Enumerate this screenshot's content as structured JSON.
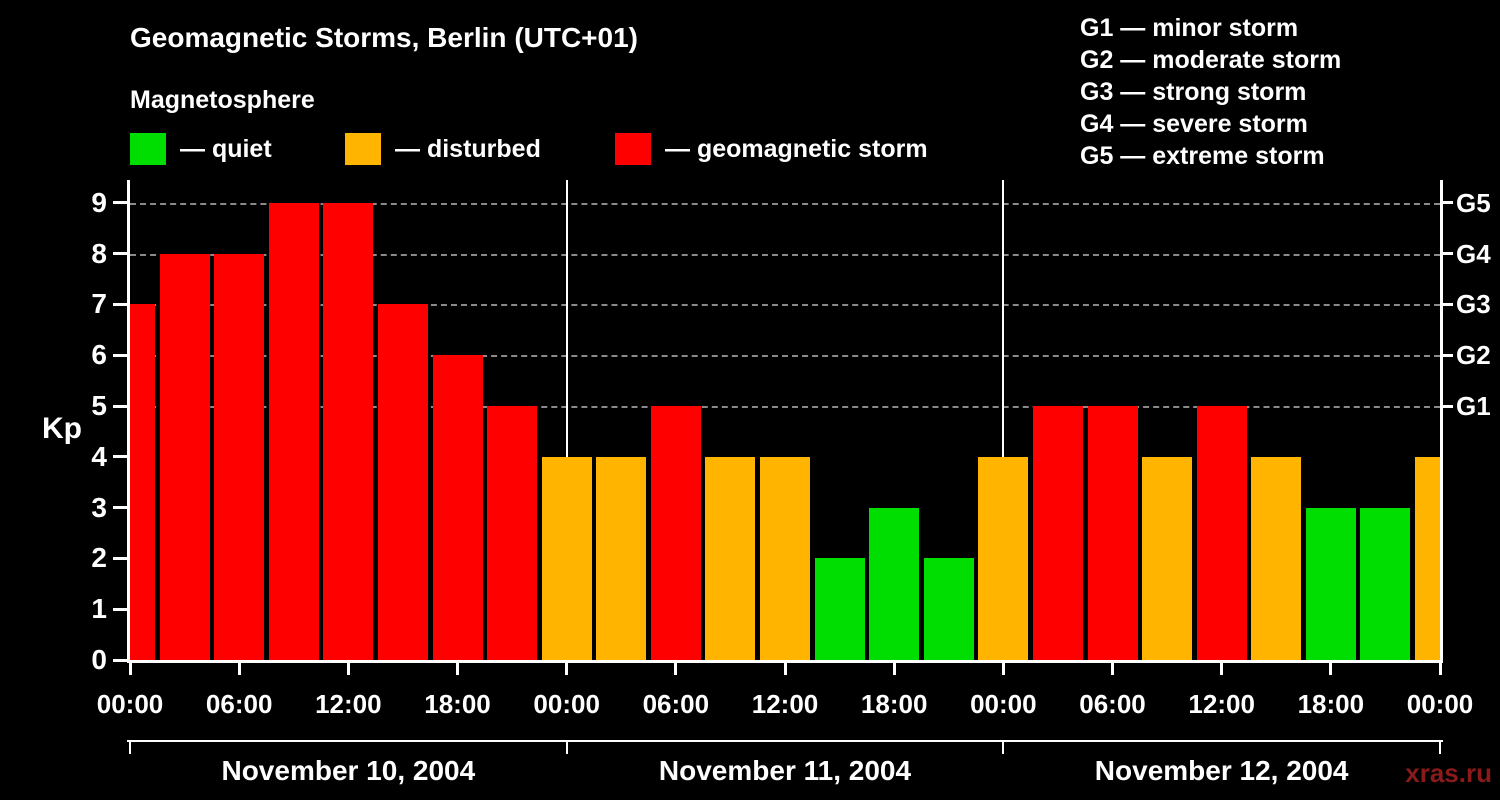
{
  "header": {
    "title": "Geomagnetic Storms, Berlin (UTC+01)",
    "subtitle": "Magnetosphere"
  },
  "legend": {
    "items": [
      {
        "status": "quiet",
        "label": "— quiet",
        "color": "#00dd00"
      },
      {
        "status": "disturbed",
        "label": "— disturbed",
        "color": "#ffb400"
      },
      {
        "status": "storm",
        "label": "— geomagnetic storm",
        "color": "#ff0000"
      }
    ]
  },
  "g_scale": {
    "items": [
      {
        "label": "G1 — minor storm"
      },
      {
        "label": "G2 — moderate storm"
      },
      {
        "label": "G3 — strong storm"
      },
      {
        "label": "G4 — severe storm"
      },
      {
        "label": "G5 — extreme storm"
      }
    ]
  },
  "watermark": "xras.ru",
  "chart_data": {
    "type": "bar",
    "title": "Geomagnetic Storms, Berlin (UTC+01)",
    "subtitle": "Magnetosphere",
    "ylabel": "Kp",
    "ylim": [
      0,
      9.5
    ],
    "y_ticks": [
      0,
      1,
      2,
      3,
      4,
      5,
      6,
      7,
      8,
      9
    ],
    "gridline_kp": [
      5,
      6,
      7,
      8,
      9
    ],
    "right_axis_labels": [
      {
        "kp": 5,
        "label": "G1"
      },
      {
        "kp": 6,
        "label": "G2"
      },
      {
        "kp": 7,
        "label": "G3"
      },
      {
        "kp": 8,
        "label": "G4"
      },
      {
        "kp": 9,
        "label": "G5"
      }
    ],
    "x_tick_labels": [
      "00:00",
      "06:00",
      "12:00",
      "18:00",
      "00:00",
      "06:00",
      "12:00",
      "18:00",
      "00:00",
      "06:00",
      "12:00",
      "18:00",
      "00:00"
    ],
    "days": [
      {
        "label": "November 10, 2004"
      },
      {
        "label": "November 11, 2004"
      },
      {
        "label": "November 12, 2004"
      }
    ],
    "colors": {
      "quiet": "#00dd00",
      "disturbed": "#ffb400",
      "storm": "#ff0000"
    },
    "bars": [
      {
        "kp": 7,
        "status": "storm"
      },
      {
        "kp": 8,
        "status": "storm"
      },
      {
        "kp": 8,
        "status": "storm"
      },
      {
        "kp": 9,
        "status": "storm"
      },
      {
        "kp": 9,
        "status": "storm"
      },
      {
        "kp": 7,
        "status": "storm"
      },
      {
        "kp": 6,
        "status": "storm"
      },
      {
        "kp": 5,
        "status": "storm"
      },
      {
        "kp": 4,
        "status": "disturbed"
      },
      {
        "kp": 4,
        "status": "disturbed"
      },
      {
        "kp": 5,
        "status": "storm"
      },
      {
        "kp": 4,
        "status": "disturbed"
      },
      {
        "kp": 4,
        "status": "disturbed"
      },
      {
        "kp": 2,
        "status": "quiet"
      },
      {
        "kp": 3,
        "status": "quiet"
      },
      {
        "kp": 2,
        "status": "quiet"
      },
      {
        "kp": 4,
        "status": "disturbed"
      },
      {
        "kp": 5,
        "status": "storm"
      },
      {
        "kp": 5,
        "status": "storm"
      },
      {
        "kp": 4,
        "status": "disturbed"
      },
      {
        "kp": 5,
        "status": "storm"
      },
      {
        "kp": 4,
        "status": "disturbed"
      },
      {
        "kp": 3,
        "status": "quiet"
      },
      {
        "kp": 3,
        "status": "quiet"
      },
      {
        "kp": 4,
        "status": "disturbed"
      }
    ]
  }
}
